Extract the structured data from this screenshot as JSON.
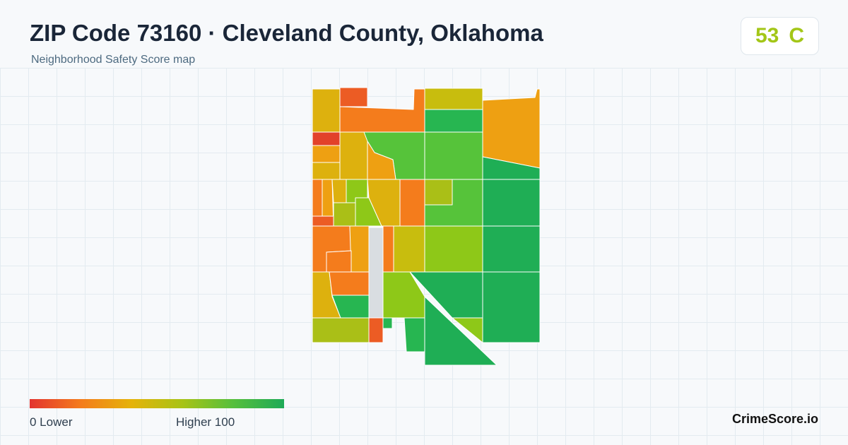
{
  "header": {
    "title": "ZIP Code 73160 · Cleveland County, Oklahoma",
    "subtitle": "Neighborhood Safety Score map"
  },
  "score": {
    "value": "53",
    "grade": "C",
    "color": "#a3c617"
  },
  "map": {
    "type": "choropleth",
    "scale_range": [
      0,
      100
    ],
    "colors": {
      "red": "#e2412a",
      "red_orange": "#ec5c24",
      "orange": "#f47c1c",
      "orange_gold": "#eea012",
      "gold": "#ddb10e",
      "olive": "#c8bd0e",
      "yellow_green": "#aabf17",
      "lime": "#8ec818",
      "light_green": "#56c33a",
      "green": "#27b651",
      "dark_green": "#1fae55",
      "no_data": "#d9dde1"
    }
  },
  "legend": {
    "low_label": "0  Lower",
    "high_label": "Higher  100",
    "gradient": [
      "#e3342f",
      "#f47c1c",
      "#e5b30a",
      "#a8c316",
      "#56bf3c",
      "#1eaa57"
    ]
  },
  "brand": "CrimeScore.io"
}
